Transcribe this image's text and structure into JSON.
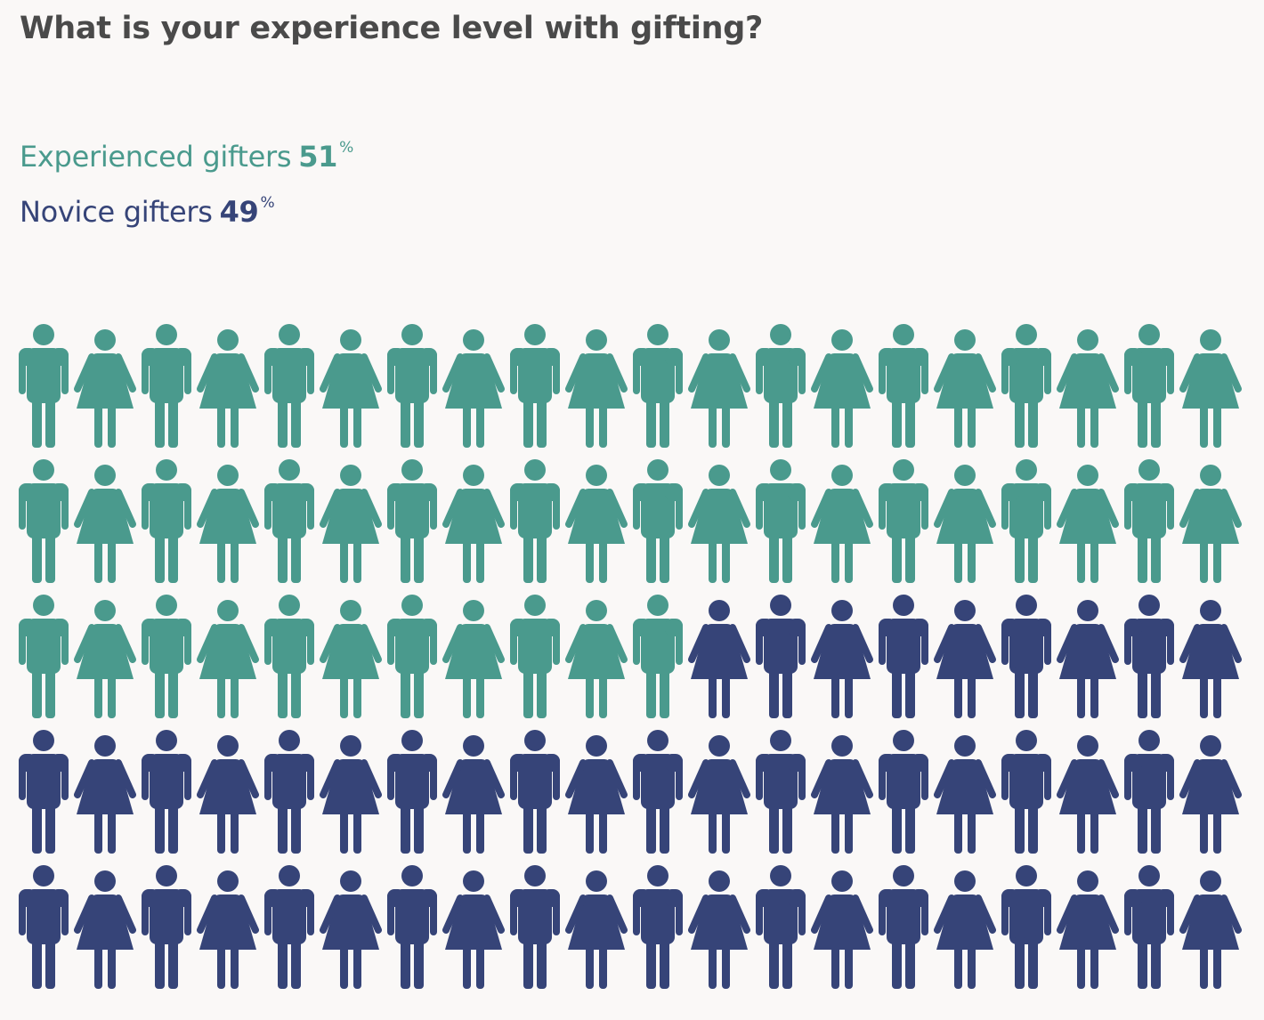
{
  "title": "What is your experience level with gifting?",
  "legend": [
    {
      "label": "Experienced gifters",
      "value": "51",
      "unit": "%",
      "color": "#4a9a8d"
    },
    {
      "label": "Novice gifters",
      "value": "49",
      "unit": "%",
      "color": "#364478"
    }
  ],
  "chart_data": {
    "type": "pictograph",
    "title": "What is your experience level with gifting?",
    "total_icons": 100,
    "icon_pattern": [
      "man-icon",
      "woman-icon"
    ],
    "series": [
      {
        "name": "Experienced gifters",
        "value": 51,
        "unit": "%",
        "color": "#4a9a8d"
      },
      {
        "name": "Novice gifters",
        "value": 49,
        "unit": "%",
        "color": "#364478"
      }
    ]
  }
}
